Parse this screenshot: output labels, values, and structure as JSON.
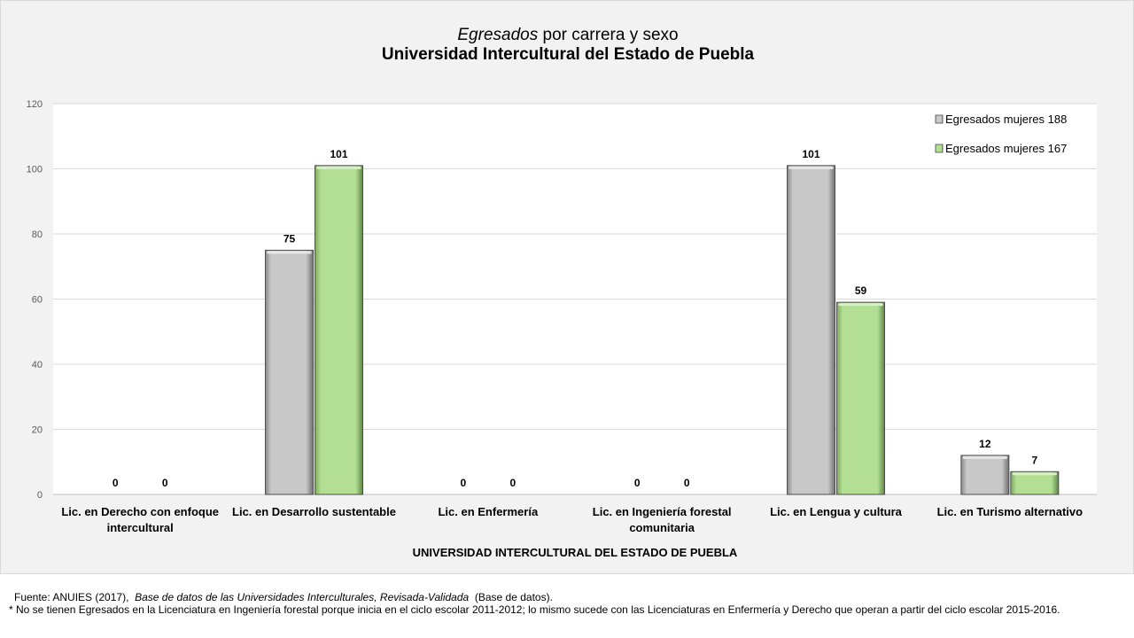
{
  "title": {
    "italic_part": "Egresados",
    "rest": " por carrera y sexo",
    "line2": "Universidad Intercultural del Estado de Puebla"
  },
  "footer": {
    "source_prefix": "Fuente: ANUIES (2017),",
    "source_italic": "Base de datos de las Universidades Interculturales, Revisada-Validada",
    "source_suffix": "(Base de datos).",
    "note": "* No se tienen Egresados en la Licenciatura en Ingeniería forestal porque inicia en el ciclo escolar 2011-2012; lo mismo sucede con las Licenciaturas en Enfermería y Derecho que operan a partir del ciclo escolar 2015-2016."
  },
  "chart_data": {
    "type": "bar",
    "xlabel": "UNIVERSIDAD INTERCULTURAL DEL ESTADO DE PUEBLA",
    "ylabel": "",
    "ylim": [
      0,
      120
    ],
    "yticks": [
      0,
      20,
      40,
      60,
      80,
      100,
      120
    ],
    "grid": true,
    "legend_position": "top-right",
    "categories": [
      [
        "Lic. en Derecho con enfoque",
        "intercultural"
      ],
      [
        "Lic. en Desarrollo sustentable"
      ],
      [
        "Lic. en Enfermería"
      ],
      [
        "Lic. en Ingeniería forestal",
        "comunitaria"
      ],
      [
        "Lic. en Lengua y cultura"
      ],
      [
        "Lic. en Turismo alternativo"
      ]
    ],
    "series": [
      {
        "name": "Egresados mujeres 188",
        "color": "#c8c8c8",
        "values": [
          0,
          75,
          0,
          0,
          101,
          12
        ]
      },
      {
        "name": "Egresados mujeres 167",
        "color": "#b3df94",
        "values": [
          0,
          101,
          0,
          0,
          59,
          7
        ]
      }
    ]
  }
}
